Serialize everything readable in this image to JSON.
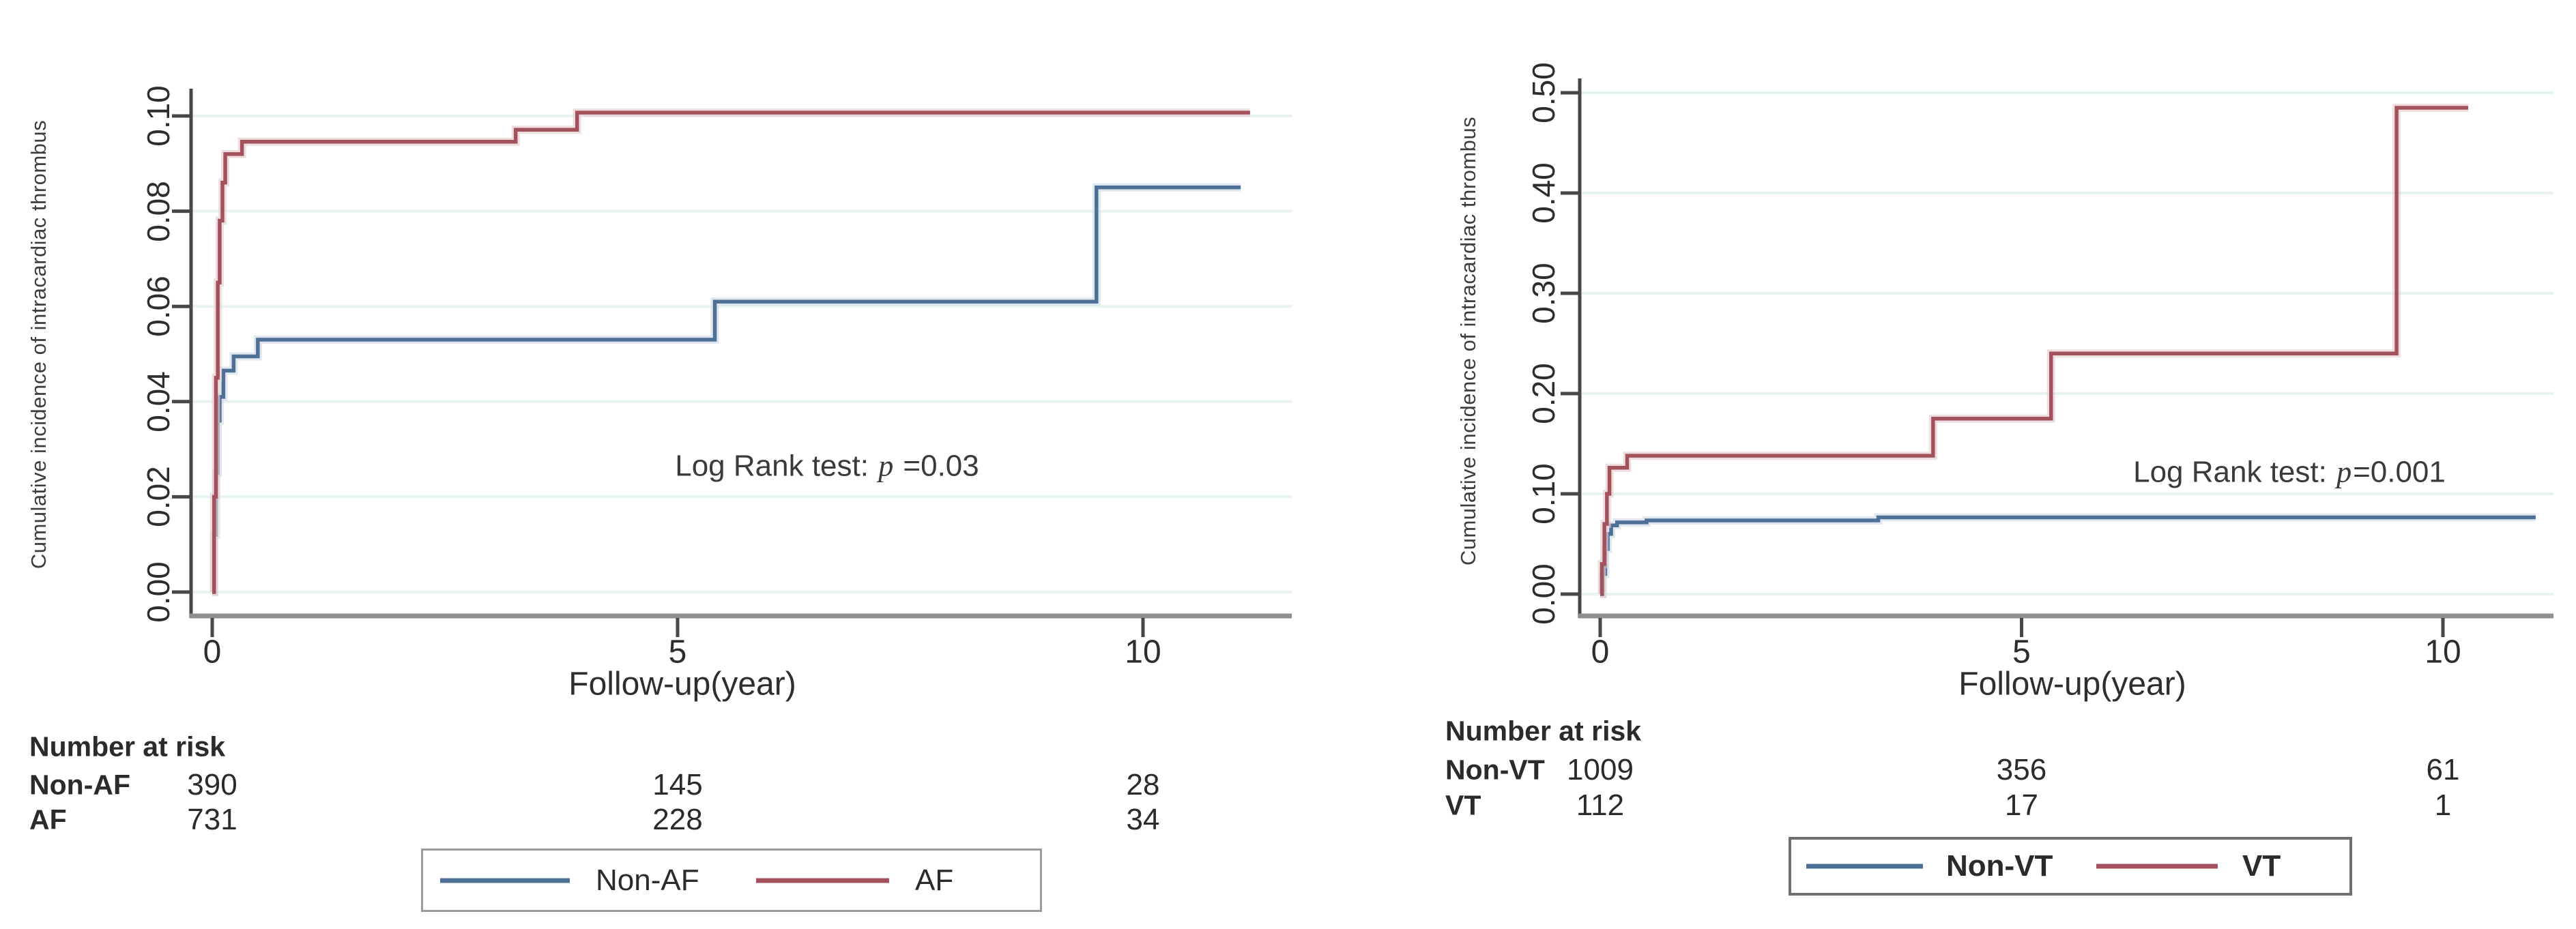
{
  "figure": {
    "description": "Cumulative incidence of intracardiac thrombus, two-panel survival figure"
  },
  "chart_data": [
    {
      "id": "af",
      "type": "line",
      "subtype": "step",
      "title": "",
      "ylabel": "Cumulative incidence of intracardiac thrombus",
      "xlabel": "Follow-up(year)",
      "xlim": [
        0,
        11.5
      ],
      "ylim": [
        0,
        0.105
      ],
      "grid": true,
      "legend_position": "bottom-center",
      "yticks": [
        {
          "v": 0.1,
          "label": "0.10"
        },
        {
          "v": 0.08,
          "label": "0.08"
        },
        {
          "v": 0.06,
          "label": "0.06"
        },
        {
          "v": 0.04,
          "label": "0.04"
        },
        {
          "v": 0.02,
          "label": "0.02"
        },
        {
          "v": 0.0,
          "label": "0.00"
        }
      ],
      "xticks": [
        {
          "v": 0,
          "label": "0"
        },
        {
          "v": 5,
          "label": "5"
        },
        {
          "v": 10,
          "label": "10"
        }
      ],
      "annotation": {
        "prefix": "Log Rank test: ",
        "p": "p",
        "suffix": " =0.03"
      },
      "series": [
        {
          "name": "Non-AF",
          "color": "#4f7096",
          "halo": "#cfdae6",
          "points": [
            [
              0,
              0
            ],
            [
              0.02,
              0.012
            ],
            [
              0.04,
              0.025
            ],
            [
              0.06,
              0.036
            ],
            [
              0.08,
              0.041
            ],
            [
              0.12,
              0.0465
            ],
            [
              0.23,
              0.0495
            ],
            [
              0.49,
              0.053
            ],
            [
              5.4,
              0.061
            ],
            [
              9.5,
              0.085
            ],
            [
              11.05,
              0.085
            ]
          ]
        },
        {
          "name": "AF",
          "color": "#a3525c",
          "halo": "#e6cdd1",
          "points": [
            [
              0,
              0
            ],
            [
              0.02,
              0.02
            ],
            [
              0.04,
              0.045
            ],
            [
              0.06,
              0.065
            ],
            [
              0.08,
              0.078
            ],
            [
              0.11,
              0.086
            ],
            [
              0.14,
              0.092
            ],
            [
              0.32,
              0.0946
            ],
            [
              3.26,
              0.0971
            ],
            [
              3.92,
              0.1007
            ],
            [
              11.15,
              0.1007
            ]
          ]
        }
      ],
      "risk_table": {
        "header": "Number at risk",
        "rows": [
          {
            "label": "Non-AF",
            "values": [
              "390",
              "145",
              "28"
            ]
          },
          {
            "label": "AF",
            "values": [
              "731",
              "228",
              "34"
            ]
          }
        ]
      }
    },
    {
      "id": "vt",
      "type": "line",
      "subtype": "step",
      "title": "",
      "ylabel": "Cumulative incidence of intracardiac thrombus",
      "xlabel": "Follow-up(year)",
      "xlim": [
        0,
        11.5
      ],
      "ylim": [
        0,
        0.52
      ],
      "grid": true,
      "legend_position": "bottom-center",
      "yticks": [
        {
          "v": 0.5,
          "label": "0.50"
        },
        {
          "v": 0.4,
          "label": "0.40"
        },
        {
          "v": 0.3,
          "label": "0.30"
        },
        {
          "v": 0.2,
          "label": "0.20"
        },
        {
          "v": 0.1,
          "label": "0.10"
        },
        {
          "v": 0.0,
          "label": "0.00"
        }
      ],
      "xticks": [
        {
          "v": 0,
          "label": "0"
        },
        {
          "v": 5,
          "label": "5"
        },
        {
          "v": 10,
          "label": "10"
        }
      ],
      "annotation": {
        "prefix": "Log Rank test: ",
        "p": "p",
        "suffix": "=0.001"
      },
      "series": [
        {
          "name": "Non-VT",
          "color": "#4f7096",
          "halo": "#cfdae6",
          "points": [
            [
              0,
              0
            ],
            [
              0.03,
              0.02
            ],
            [
              0.06,
              0.045
            ],
            [
              0.09,
              0.06
            ],
            [
              0.13,
              0.0685
            ],
            [
              0.2,
              0.0715
            ],
            [
              0.55,
              0.0735
            ],
            [
              3.3,
              0.0765
            ],
            [
              11.1,
              0.0765
            ]
          ]
        },
        {
          "name": "VT",
          "color": "#a3525c",
          "halo": "#e6cdd1",
          "points": [
            [
              0,
              0
            ],
            [
              0.02,
              0.03
            ],
            [
              0.05,
              0.07
            ],
            [
              0.08,
              0.1
            ],
            [
              0.11,
              0.126
            ],
            [
              0.32,
              0.138
            ],
            [
              3.95,
              0.175
            ],
            [
              5.35,
              0.24
            ],
            [
              9.45,
              0.485
            ],
            [
              10.3,
              0.485
            ]
          ]
        }
      ],
      "risk_table": {
        "header": "Number at risk",
        "rows": [
          {
            "label": "Non-VT",
            "values": [
              "1009",
              "356",
              "61"
            ]
          },
          {
            "label": "VT",
            "values": [
              "112",
              "17",
              "1"
            ]
          }
        ]
      }
    }
  ],
  "colors": {
    "non_event_line": "#4f7096",
    "event_line": "#a3525c",
    "gridline": "#e7f3f0",
    "axis_vertical": "#474747",
    "axis_horizontal": "#8f8f8f",
    "text": "#2d2d2d"
  }
}
